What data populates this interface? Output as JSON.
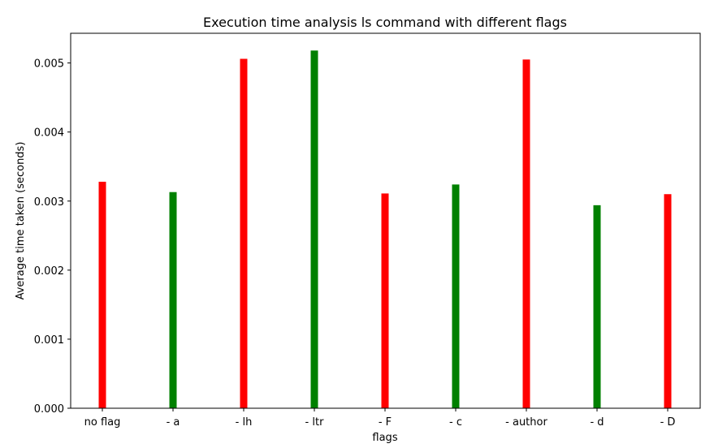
{
  "chart_data": {
    "type": "bar",
    "title": "Execution time analysis ls command with different flags",
    "xlabel": "flags",
    "ylabel": "Average time taken (seconds)",
    "categories": [
      "no flag",
      "- a",
      "- lh",
      "- ltr",
      "- F",
      "- c",
      "- author",
      "- d",
      "- D"
    ],
    "values": [
      0.00328,
      0.00313,
      0.00506,
      0.00518,
      0.00311,
      0.00324,
      0.00505,
      0.00294,
      0.0031
    ],
    "bar_colors": [
      "#ff0000",
      "#008000",
      "#ff0000",
      "#008000",
      "#ff0000",
      "#008000",
      "#ff0000",
      "#008000",
      "#ff0000"
    ],
    "ylim": [
      0,
      0.00543
    ],
    "yticks": [
      0.0,
      0.001,
      0.002,
      0.003,
      0.004,
      0.005
    ],
    "ytick_labels": [
      "0.000",
      "0.001",
      "0.002",
      "0.003",
      "0.004",
      "0.005"
    ],
    "grid": false,
    "legend": "none"
  }
}
